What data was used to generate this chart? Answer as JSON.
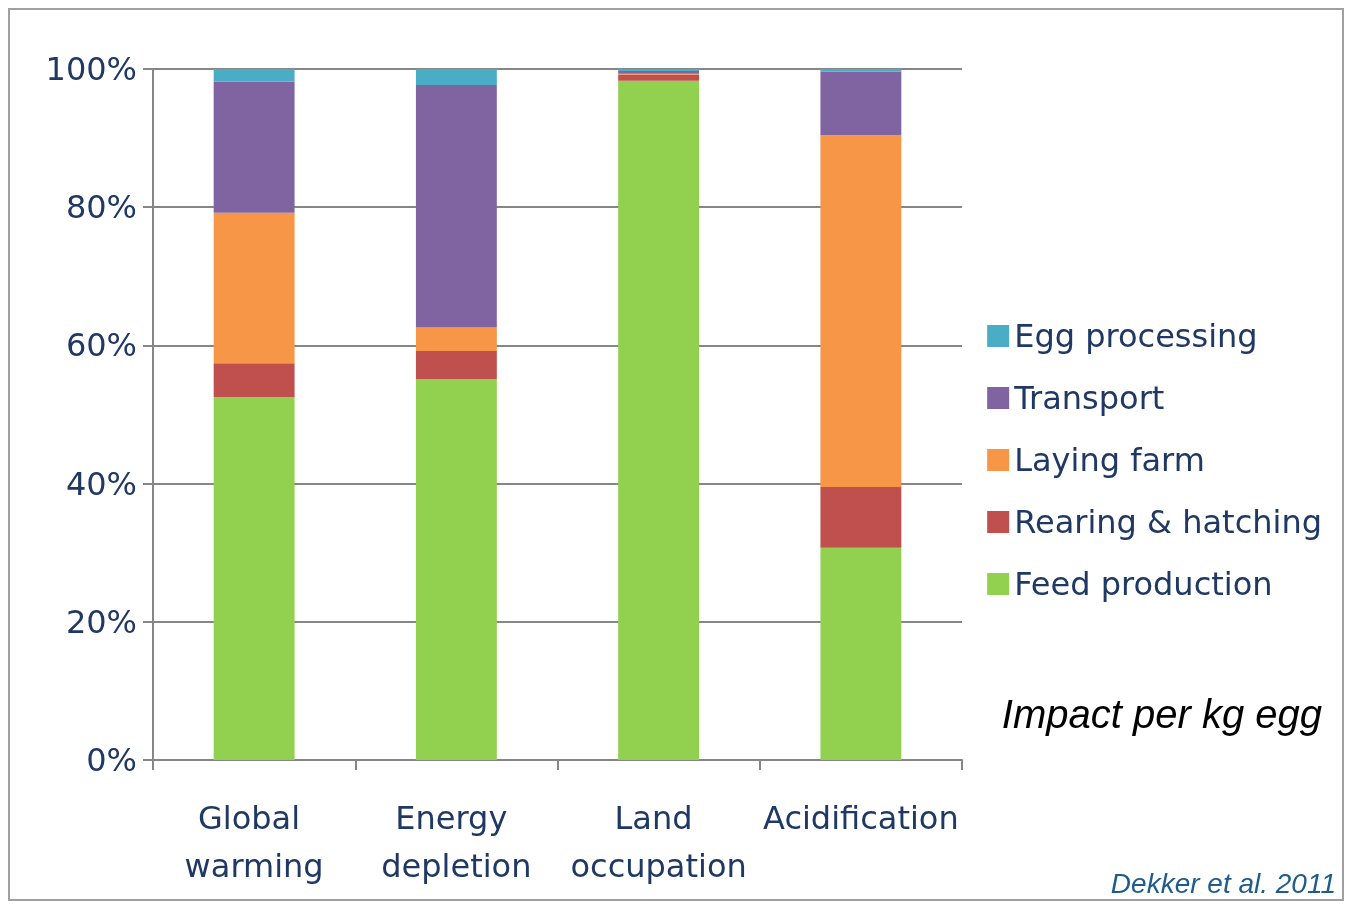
{
  "chart_data": {
    "type": "bar",
    "stacked": true,
    "categories": [
      "Global warming",
      "Energy depletion",
      "Land occupation",
      "Acidification"
    ],
    "series": [
      {
        "name": "Feed production",
        "color": "#92d050",
        "values": [
          52.5,
          55.1,
          98.3,
          30.7
        ]
      },
      {
        "name": "Rearing & hatching",
        "color": "#c0504d",
        "values": [
          4.9,
          4.1,
          0.9,
          8.8
        ]
      },
      {
        "name": "Laying farm",
        "color": "#f79646",
        "values": [
          21.8,
          3.4,
          0.1,
          50.9
        ]
      },
      {
        "name": "Transport",
        "color": "#8064a2",
        "values": [
          19.0,
          35.1,
          0.4,
          9.2
        ]
      },
      {
        "name": "Egg processing",
        "color": "#4bacc6",
        "values": [
          1.8,
          2.3,
          0.3,
          0.4
        ]
      }
    ],
    "ylim": [
      0,
      100
    ],
    "yticks": [
      {
        "value": 0,
        "label": "0%"
      },
      {
        "value": 20,
        "label": "20%"
      },
      {
        "value": 40,
        "label": "40%"
      },
      {
        "value": 60,
        "label": "60%"
      },
      {
        "value": 80,
        "label": "80%"
      },
      {
        "value": 100,
        "label": "100%"
      }
    ],
    "grid": "y",
    "legend": "right",
    "annotations": [
      "Impact per kg egg",
      "Dekker et al. 2011"
    ]
  }
}
